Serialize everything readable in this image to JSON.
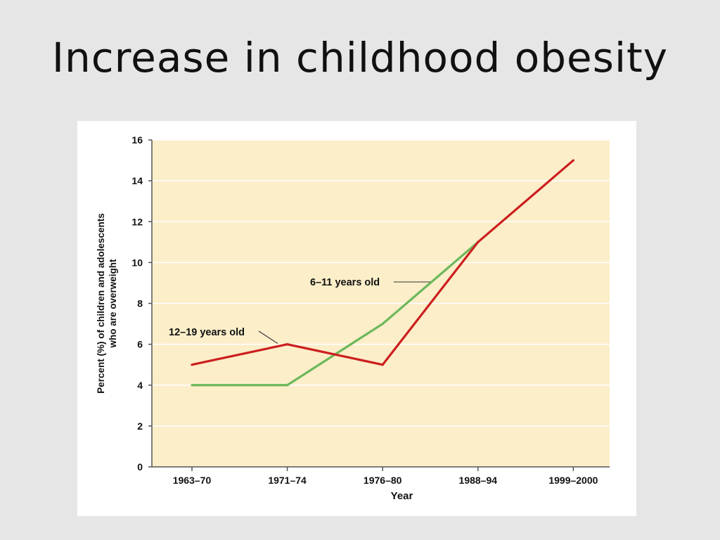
{
  "slide": {
    "title": "Increase in childhood obesity"
  },
  "chart_data": {
    "type": "line",
    "categories": [
      "1963–70",
      "1971–74",
      "1976–80",
      "1988–94",
      "1999–2000"
    ],
    "series": [
      {
        "name": "6–11 years old",
        "values": [
          4,
          4,
          7,
          11,
          null
        ]
      },
      {
        "name": "12–19 years old",
        "values": [
          5,
          6,
          5,
          11,
          15
        ]
      }
    ],
    "xlabel": "Year",
    "ylabel": "Percent (%) of children and adolescents who are overweight",
    "ylabel_lines": [
      "Percent (%) of children and adolescents",
      "who are overweight"
    ],
    "ylim": [
      0,
      16
    ],
    "yticks": [
      0,
      2,
      4,
      6,
      8,
      10,
      12,
      14,
      16
    ],
    "grid": true,
    "colors": {
      "plot_background": "#fbeec9",
      "grid": "#ffffff",
      "series_6_11": "#6cb85a",
      "series_12_19": "#cc1f1f"
    }
  }
}
